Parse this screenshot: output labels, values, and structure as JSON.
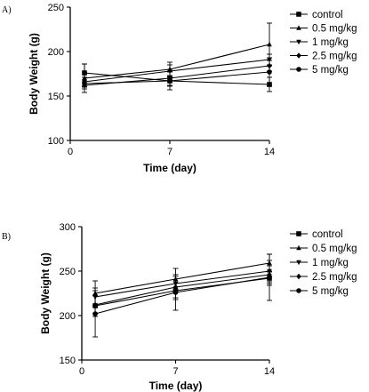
{
  "chart_data": [
    {
      "panel_label": "A)",
      "type": "line",
      "xlabel": "Time (day)",
      "ylabel": "Body Weight (g)",
      "xlim": [
        0,
        14
      ],
      "ylim": [
        100,
        250
      ],
      "x_ticks": [
        0,
        7,
        14
      ],
      "y_ticks": [
        100,
        150,
        200,
        250
      ],
      "x": [
        1,
        7,
        14
      ],
      "grid": false,
      "legend_position": "right",
      "series": [
        {
          "name": "control",
          "values": [
            176,
            167,
            163
          ],
          "errors": [
            10,
            6,
            8
          ],
          "marker": "square"
        },
        {
          "name": "0.5 mg/kg",
          "values": [
            170,
            180,
            208
          ],
          "errors": [
            16,
            8,
            24
          ],
          "marker": "triangle-up"
        },
        {
          "name": "1 mg/kg",
          "values": [
            166,
            178,
            191
          ],
          "errors": [
            5,
            7,
            6
          ],
          "marker": "triangle-down"
        },
        {
          "name": "2.5 mg/kg",
          "values": [
            162,
            170,
            184
          ],
          "errors": [
            4,
            8,
            6
          ],
          "marker": "diamond"
        },
        {
          "name": "5 mg/kg",
          "values": [
            164,
            167,
            177
          ],
          "errors": [
            4,
            10,
            16
          ],
          "marker": "circle"
        }
      ]
    },
    {
      "panel_label": "B)",
      "type": "line",
      "xlabel": "Time (day)",
      "ylabel": "Body Weight (g)",
      "xlim": [
        0,
        14
      ],
      "ylim": [
        150,
        300
      ],
      "x_ticks": [
        0,
        7,
        14
      ],
      "y_ticks": [
        150,
        200,
        250,
        300
      ],
      "x": [
        1,
        7,
        14
      ],
      "grid": false,
      "legend_position": "right",
      "series": [
        {
          "name": "control",
          "values": [
            211,
            228,
            242
          ],
          "errors": [
            12,
            10,
            8
          ],
          "marker": "square"
        },
        {
          "name": "0.5 mg/kg",
          "values": [
            225,
            241,
            259
          ],
          "errors": [
            14,
            12,
            10
          ],
          "marker": "triangle-up"
        },
        {
          "name": "1 mg/kg",
          "values": [
            221,
            236,
            250
          ],
          "errors": [
            10,
            10,
            12
          ],
          "marker": "triangle-down"
        },
        {
          "name": "2.5 mg/kg",
          "values": [
            212,
            232,
            246
          ],
          "errors": [
            10,
            12,
            10
          ],
          "marker": "diamond"
        },
        {
          "name": "5 mg/kg",
          "values": [
            202,
            226,
            243
          ],
          "errors": [
            26,
            20,
            26
          ],
          "marker": "circle"
        }
      ]
    }
  ]
}
